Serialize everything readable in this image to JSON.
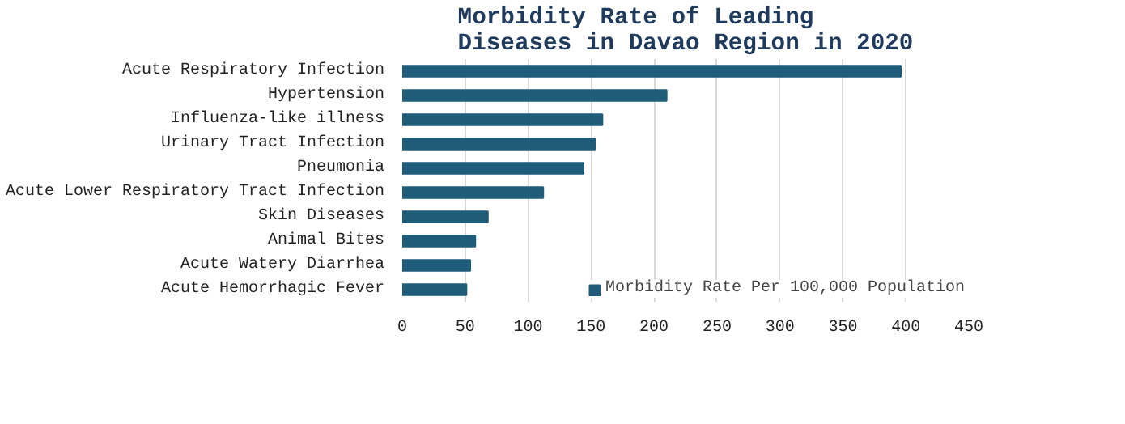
{
  "chart_data": {
    "type": "bar",
    "orientation": "horizontal",
    "title": "Morbidity Rate of Leading Diseases in Davao Region in 2020",
    "categories": [
      "Acute Respiratory Infection",
      "Hypertension",
      "Influenza-like illness",
      "Urinary Tract Infection",
      "Pneumonia",
      "Acute Lower Respiratory Tract Infection",
      "Skin Diseases",
      "Animal Bites",
      "Acute Watery Diarrhea",
      "Acute Hemorrhagic Fever"
    ],
    "series": [
      {
        "name": "Morbidity Rate Per 100,000 Population",
        "color": "#1f5c7a",
        "values": [
          396,
          210,
          159,
          153,
          144,
          112,
          68,
          58,
          54,
          51
        ]
      }
    ],
    "xlim": [
      0,
      450
    ],
    "xticks": [
      0,
      50,
      100,
      150,
      200,
      250,
      300,
      350,
      400,
      450
    ],
    "grid": "x",
    "legend": "bottom right"
  }
}
